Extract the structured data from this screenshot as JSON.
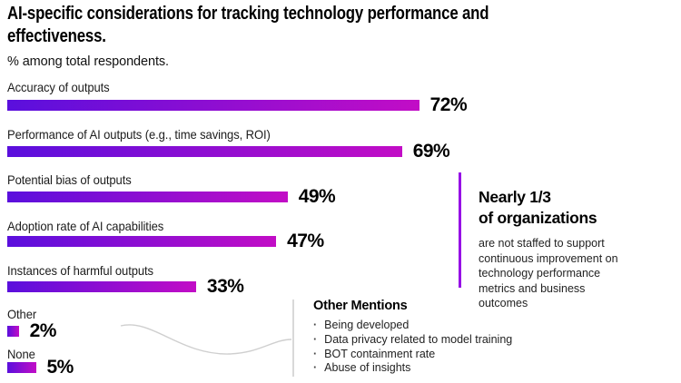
{
  "chart_data": {
    "type": "bar",
    "orientation": "horizontal",
    "title": "AI-specific considerations for tracking technology performance and effectiveness.",
    "subtitle": "% among total respondents.",
    "unit": "%",
    "categories": [
      "Accuracy of outputs",
      "Performance of AI outputs (e.g., time savings, ROI)",
      "Potential bias of outputs",
      "Adoption rate of AI capabilities",
      "Instances of harmful outputs",
      "Other",
      "None"
    ],
    "values": [
      72,
      69,
      49,
      47,
      33,
      2,
      5
    ],
    "value_labels": [
      "72%",
      "69%",
      "49%",
      "47%",
      "33%",
      "2%",
      "5%"
    ],
    "xlim": [
      0,
      100
    ],
    "grid": false,
    "legend": false,
    "bar_gradient_start": "#5a0fdd",
    "bar_gradient_end": "#c20dc6"
  },
  "callout": {
    "heading_lines": [
      "Nearly 1/3",
      "of organizations"
    ],
    "body": "are not staffed to support continuous improvement on technology performance metrics and business outcomes",
    "accent_color": "#9610e6"
  },
  "other_mentions": {
    "heading": "Other Mentions",
    "items": [
      "Being developed",
      "Data privacy related to model training",
      "BOT containment rate",
      "Abuse of insights"
    ]
  }
}
